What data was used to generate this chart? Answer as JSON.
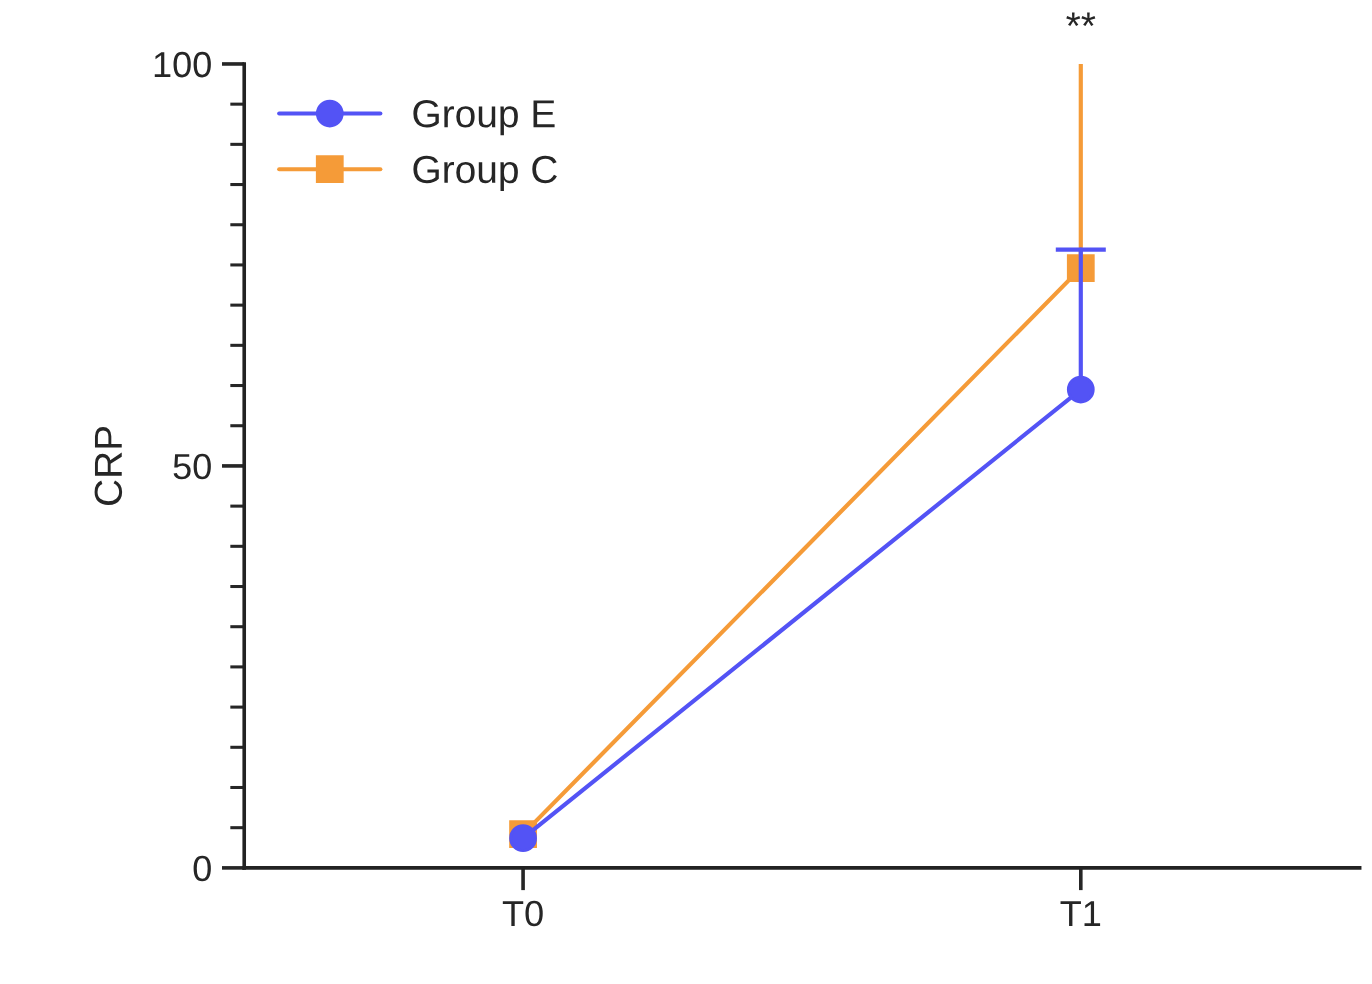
{
  "chart_data": {
    "type": "line",
    "ylabel": "CRP",
    "categories": [
      "T0",
      "T1"
    ],
    "series": [
      {
        "name": "Group E",
        "color": "#5353f5",
        "values": [
          3.7,
          59.5
        ],
        "errors": [
          null,
          [
            59.5,
            76.9
          ]
        ],
        "marker": "circle"
      },
      {
        "name": "Group C",
        "color": "#f59b38",
        "values": [
          4.2,
          74.6
        ],
        "errors": [
          null,
          [
            74.6,
            100
          ]
        ],
        "marker": "square"
      }
    ],
    "ylim": [
      0,
      100
    ],
    "yticks": [
      0,
      {
        "value": 5,
        "label": null
      },
      {
        "value": 10,
        "label": null
      },
      {
        "value": 15,
        "label": null
      },
      {
        "value": 20,
        "label": null
      },
      {
        "value": 25,
        "label": null
      },
      {
        "value": 30,
        "label": null
      },
      {
        "value": 35,
        "label": null
      },
      {
        "value": 40,
        "label": null
      },
      {
        "value": 45,
        "label": null
      },
      50,
      {
        "value": 55,
        "label": null
      },
      {
        "value": 60,
        "label": null
      },
      {
        "value": 65,
        "label": null
      },
      {
        "value": 70,
        "label": null
      },
      {
        "value": 75,
        "label": null
      },
      {
        "value": 80,
        "label": null
      },
      {
        "value": 85,
        "label": null
      },
      {
        "value": 90,
        "label": null
      },
      {
        "value": 95,
        "label": null
      },
      100
    ],
    "annotations": [
      {
        "text": "**",
        "x": "T1",
        "y": 100
      }
    ],
    "legend": "top left",
    "grid": false,
    "line_style": "solid"
  }
}
